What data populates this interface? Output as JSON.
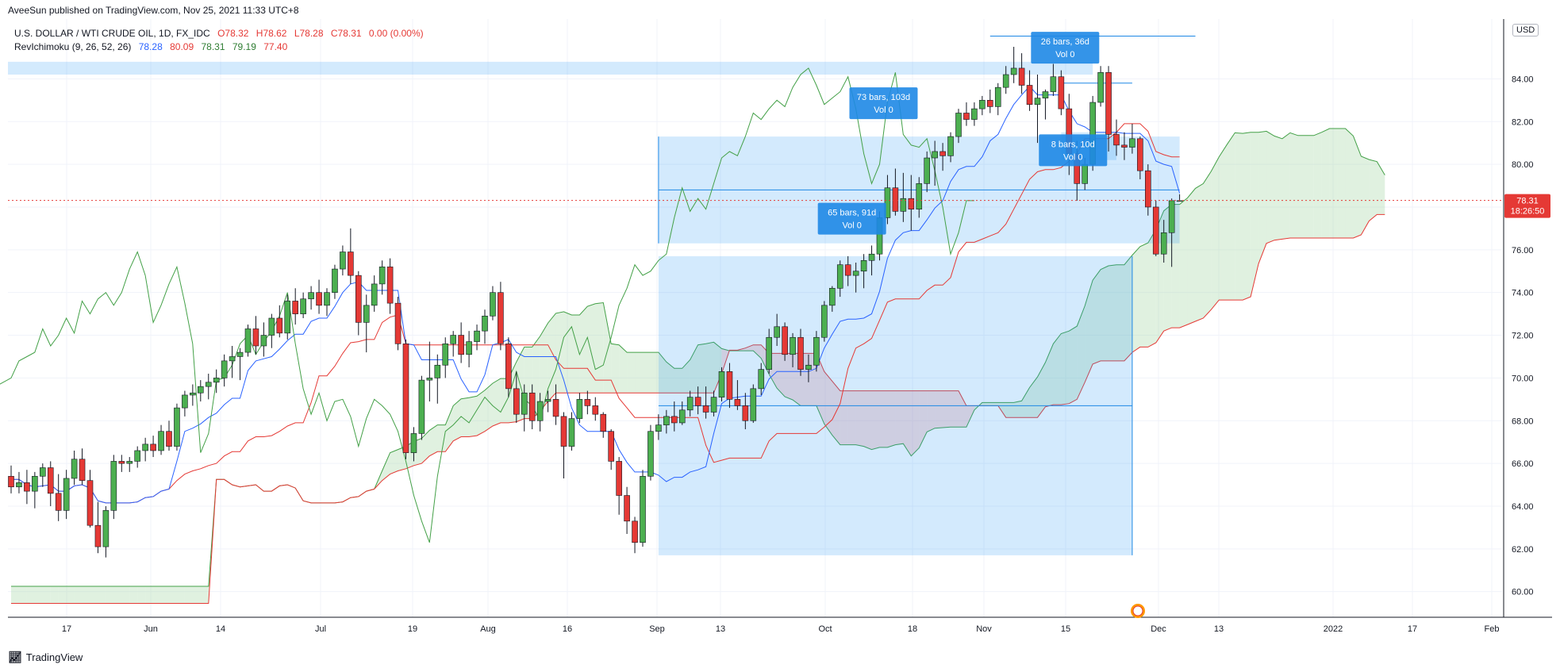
{
  "header": {
    "publisher": "AveeSun published on TradingView.com, Nov 25, 2021 11:33 UTC+8"
  },
  "symbol": {
    "name": "U.S. DOLLAR / WTI CRUDE OIL, 1D, FX_IDC",
    "open": "O78.32",
    "high": "H78.62",
    "low": "L78.28",
    "close": "C78.31",
    "change": "0.00 (0.00%)"
  },
  "indicator": {
    "name": "RevIchimoku (9, 26, 52, 26)",
    "v1": "78.28",
    "v2": "80.09",
    "v3": "78.31",
    "v4": "79.19",
    "v5": "77.40"
  },
  "currency_button": "USD",
  "price_tag": {
    "price": "78.31",
    "countdown": "18:26:50",
    "color": "#e53935"
  },
  "footer": {
    "brand": "TradingView",
    "logo": "TV-logo-icon"
  },
  "colors": {
    "up": "#26a69a",
    "up_body": "#4caf50",
    "down": "#e53935",
    "tenkan": "#2962ff",
    "kijun": "#e53935",
    "chikou": "#43a047",
    "cloud_bull": "#a5d6a7",
    "cloud_bear": "#ef9a9a",
    "tool": "#1e88e5"
  },
  "chart_data": {
    "type": "candlestick",
    "title": "U.S. DOLLAR / WTI CRUDE OIL, 1D, FX_IDC",
    "ylim": [
      58.8,
      86.8
    ],
    "y_ticks": [
      "84.00",
      "82.00",
      "80.00",
      "78.00",
      "76.00",
      "74.00",
      "72.00",
      "70.00",
      "68.00",
      "66.00",
      "64.00",
      "62.00",
      "60.00"
    ],
    "x_ticks": [
      "17",
      "Jun",
      "14",
      "Jul",
      "19",
      "Aug",
      "16",
      "Sep",
      "13",
      "Oct",
      "18",
      "Nov",
      "15",
      "Dec",
      "13",
      "2022",
      "17",
      "Feb"
    ],
    "last_price": 78.31,
    "grid": true,
    "annotations": [
      {
        "text": "73 bars, 103d",
        "sub": "Vol 0"
      },
      {
        "text": "65 bars, 91d",
        "sub": "Vol 0"
      },
      {
        "text": "26 bars, 36d",
        "sub": "Vol 0"
      },
      {
        "text": "8 bars, 10d",
        "sub": "Vol 0"
      }
    ],
    "candles": [
      [
        65.4,
        65.9,
        64.6,
        64.9
      ],
      [
        64.9,
        65.6,
        64.6,
        65.1
      ],
      [
        65.1,
        65.7,
        64.1,
        64.7
      ],
      [
        64.7,
        65.6,
        63.9,
        65.4
      ],
      [
        65.4,
        66.0,
        64.9,
        65.8
      ],
      [
        65.8,
        66.1,
        64.0,
        64.6
      ],
      [
        64.6,
        65.5,
        63.3,
        63.8
      ],
      [
        63.8,
        65.7,
        63.4,
        65.3
      ],
      [
        65.3,
        66.6,
        65.0,
        66.2
      ],
      [
        66.2,
        66.7,
        65.0,
        65.2
      ],
      [
        65.2,
        65.7,
        63.0,
        63.1
      ],
      [
        63.1,
        64.2,
        61.8,
        62.1
      ],
      [
        62.1,
        64.0,
        61.6,
        63.8
      ],
      [
        63.8,
        66.4,
        63.4,
        66.1
      ],
      [
        66.1,
        66.4,
        65.6,
        66.0
      ],
      [
        66.0,
        66.3,
        65.6,
        66.1
      ],
      [
        66.1,
        66.8,
        65.8,
        66.6
      ],
      [
        66.6,
        67.2,
        66.1,
        66.9
      ],
      [
        66.9,
        67.3,
        66.3,
        66.6
      ],
      [
        66.6,
        67.8,
        66.4,
        67.5
      ],
      [
        67.5,
        68.0,
        66.6,
        66.8
      ],
      [
        66.8,
        68.8,
        66.6,
        68.6
      ],
      [
        68.6,
        69.4,
        68.2,
        69.2
      ],
      [
        69.2,
        69.7,
        68.7,
        69.3
      ],
      [
        69.3,
        69.9,
        68.9,
        69.6
      ],
      [
        69.6,
        70.2,
        69.0,
        69.8
      ],
      [
        69.8,
        70.4,
        69.3,
        70.0
      ],
      [
        70.0,
        71.1,
        69.6,
        70.8
      ],
      [
        70.8,
        71.5,
        70.0,
        71.0
      ],
      [
        71.0,
        71.4,
        69.9,
        71.2
      ],
      [
        71.2,
        72.5,
        71.0,
        72.3
      ],
      [
        72.3,
        72.9,
        71.1,
        71.5
      ],
      [
        71.5,
        72.6,
        71.0,
        72.0
      ],
      [
        72.0,
        73.0,
        71.4,
        72.8
      ],
      [
        72.8,
        73.4,
        71.9,
        72.1
      ],
      [
        72.1,
        73.9,
        71.8,
        73.6
      ],
      [
        73.6,
        74.2,
        72.5,
        73.0
      ],
      [
        73.0,
        74.0,
        72.8,
        73.7
      ],
      [
        73.7,
        74.3,
        73.2,
        74.0
      ],
      [
        74.0,
        74.6,
        73.0,
        73.4
      ],
      [
        73.4,
        74.2,
        72.9,
        74.0
      ],
      [
        74.0,
        75.3,
        73.7,
        75.1
      ],
      [
        75.1,
        76.2,
        74.8,
        75.9
      ],
      [
        75.9,
        77.0,
        74.4,
        74.8
      ],
      [
        74.8,
        75.0,
        72.0,
        72.6
      ],
      [
        72.6,
        73.9,
        71.2,
        73.4
      ],
      [
        73.4,
        74.8,
        73.1,
        74.4
      ],
      [
        74.4,
        75.5,
        73.9,
        75.2
      ],
      [
        75.2,
        75.6,
        73.0,
        73.5
      ],
      [
        73.5,
        73.8,
        71.3,
        71.6
      ],
      [
        71.6,
        71.8,
        66.2,
        66.5
      ],
      [
        66.5,
        67.7,
        66.1,
        67.4
      ],
      [
        67.4,
        70.1,
        67.1,
        69.9
      ],
      [
        69.9,
        71.7,
        68.9,
        70.0
      ],
      [
        70.0,
        71.1,
        68.8,
        70.6
      ],
      [
        70.6,
        71.9,
        70.0,
        71.6
      ],
      [
        71.6,
        72.2,
        71.0,
        72.0
      ],
      [
        72.0,
        72.6,
        70.7,
        71.1
      ],
      [
        71.1,
        72.2,
        70.5,
        71.7
      ],
      [
        71.7,
        72.5,
        71.3,
        72.2
      ],
      [
        72.2,
        73.2,
        71.6,
        72.9
      ],
      [
        72.9,
        74.3,
        72.7,
        74.0
      ],
      [
        74.0,
        74.5,
        71.3,
        71.6
      ],
      [
        71.6,
        71.9,
        69.1,
        69.5
      ],
      [
        69.5,
        70.3,
        67.9,
        68.3
      ],
      [
        68.3,
        69.7,
        67.5,
        69.3
      ],
      [
        69.3,
        69.7,
        67.6,
        68.0
      ],
      [
        68.0,
        69.3,
        67.5,
        68.9
      ],
      [
        68.9,
        69.4,
        68.4,
        69.0
      ],
      [
        69.0,
        69.7,
        67.8,
        68.2
      ],
      [
        68.2,
        68.4,
        65.3,
        66.8
      ],
      [
        66.8,
        68.4,
        66.6,
        68.1
      ],
      [
        68.1,
        69.3,
        67.9,
        69.0
      ],
      [
        69.0,
        69.4,
        68.3,
        68.7
      ],
      [
        68.7,
        69.1,
        68.0,
        68.3
      ],
      [
        68.3,
        68.4,
        67.2,
        67.5
      ],
      [
        67.5,
        67.6,
        65.7,
        66.1
      ],
      [
        66.1,
        66.3,
        63.6,
        64.5
      ],
      [
        64.5,
        64.9,
        62.7,
        63.3
      ],
      [
        63.3,
        63.5,
        61.8,
        62.3
      ],
      [
        62.3,
        65.7,
        62.1,
        65.4
      ],
      [
        65.4,
        67.8,
        65.2,
        67.5
      ],
      [
        67.5,
        68.3,
        67.1,
        67.8
      ],
      [
        67.8,
        68.5,
        67.4,
        68.2
      ],
      [
        68.2,
        68.9,
        67.5,
        67.9
      ],
      [
        67.9,
        68.9,
        67.8,
        68.5
      ],
      [
        68.5,
        69.4,
        68.2,
        69.1
      ],
      [
        69.1,
        69.6,
        68.3,
        68.7
      ],
      [
        68.7,
        69.6,
        68.1,
        68.4
      ],
      [
        68.4,
        69.4,
        68.2,
        69.1
      ],
      [
        69.1,
        70.5,
        68.9,
        70.3
      ],
      [
        70.3,
        70.7,
        68.6,
        69.0
      ],
      [
        69.0,
        69.9,
        68.5,
        68.7
      ],
      [
        68.7,
        69.3,
        67.6,
        68.0
      ],
      [
        68.0,
        69.7,
        67.9,
        69.5
      ],
      [
        69.5,
        70.7,
        69.2,
        70.4
      ],
      [
        70.4,
        72.3,
        70.2,
        71.9
      ],
      [
        71.9,
        73.0,
        71.5,
        72.4
      ],
      [
        72.4,
        72.6,
        70.8,
        71.1
      ],
      [
        71.1,
        72.1,
        70.5,
        71.9
      ],
      [
        71.9,
        72.3,
        70.1,
        70.4
      ],
      [
        70.4,
        71.1,
        69.8,
        70.6
      ],
      [
        70.6,
        72.2,
        70.3,
        71.9
      ],
      [
        71.9,
        73.6,
        71.7,
        73.4
      ],
      [
        73.4,
        74.3,
        73.1,
        74.2
      ],
      [
        74.2,
        75.5,
        73.8,
        75.3
      ],
      [
        75.3,
        75.7,
        74.3,
        74.8
      ],
      [
        74.8,
        75.4,
        74.0,
        75.0
      ],
      [
        75.0,
        75.8,
        74.2,
        75.5
      ],
      [
        75.5,
        76.2,
        74.8,
        75.8
      ],
      [
        75.8,
        77.8,
        75.5,
        77.5
      ],
      [
        77.5,
        79.5,
        77.2,
        78.9
      ],
      [
        78.9,
        79.8,
        77.6,
        77.8
      ],
      [
        77.8,
        79.6,
        77.3,
        78.4
      ],
      [
        78.4,
        79.5,
        76.9,
        77.9
      ],
      [
        77.9,
        79.4,
        77.5,
        79.1
      ],
      [
        79.1,
        80.6,
        78.7,
        80.3
      ],
      [
        80.3,
        81.1,
        79.0,
        80.6
      ],
      [
        80.6,
        81.0,
        79.7,
        80.4
      ],
      [
        80.4,
        81.5,
        80.1,
        81.3
      ],
      [
        81.3,
        82.6,
        81.0,
        82.4
      ],
      [
        82.4,
        82.9,
        81.8,
        82.1
      ],
      [
        82.1,
        82.9,
        81.8,
        82.6
      ],
      [
        82.6,
        83.2,
        82.3,
        83.0
      ],
      [
        83.0,
        83.5,
        82.4,
        82.7
      ],
      [
        82.7,
        83.8,
        82.3,
        83.6
      ],
      [
        83.6,
        84.6,
        83.3,
        84.2
      ],
      [
        84.2,
        85.5,
        83.8,
        84.5
      ],
      [
        84.5,
        85.2,
        83.3,
        83.7
      ],
      [
        83.7,
        84.4,
        82.5,
        82.8
      ],
      [
        82.8,
        84.2,
        81.0,
        83.1
      ],
      [
        83.1,
        83.5,
        82.1,
        83.4
      ],
      [
        83.4,
        84.7,
        83.2,
        84.1
      ],
      [
        84.1,
        84.4,
        82.3,
        82.6
      ],
      [
        82.6,
        83.3,
        79.5,
        80.5
      ],
      [
        80.5,
        81.1,
        78.3,
        79.1
      ],
      [
        79.1,
        80.3,
        78.8,
        80.0
      ],
      [
        80.0,
        83.2,
        79.7,
        82.9
      ],
      [
        82.9,
        84.6,
        82.7,
        84.3
      ],
      [
        84.3,
        84.6,
        80.6,
        81.4
      ],
      [
        81.4,
        82.1,
        80.4,
        80.9
      ],
      [
        80.9,
        81.5,
        80.2,
        80.8
      ],
      [
        80.8,
        81.9,
        80.5,
        81.2
      ],
      [
        81.2,
        81.3,
        79.3,
        79.7
      ],
      [
        79.7,
        80.0,
        77.6,
        78.0
      ],
      [
        78.0,
        78.3,
        75.7,
        75.8
      ],
      [
        75.8,
        77.4,
        75.4,
        76.8
      ],
      [
        76.8,
        78.4,
        75.2,
        78.3
      ],
      [
        78.3,
        78.6,
        78.3,
        78.3
      ]
    ]
  }
}
